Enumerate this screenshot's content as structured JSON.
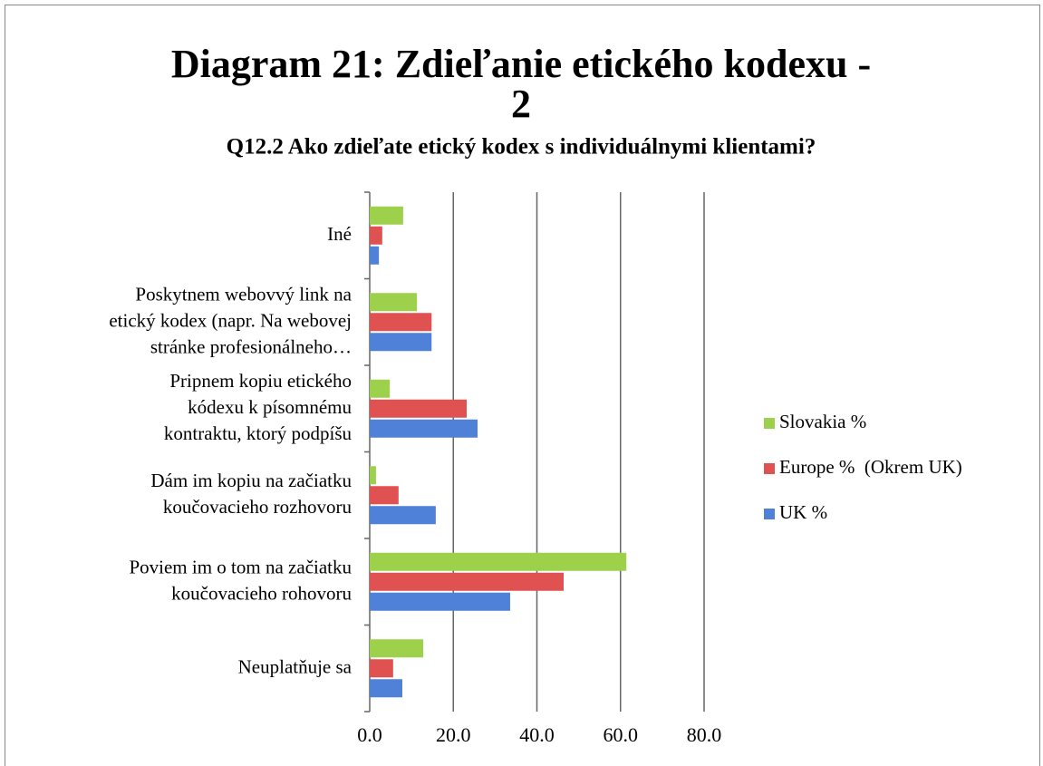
{
  "chart_data": {
    "type": "hbar",
    "title": [
      "Diagram 21: Zdieľanie etického kodexu -",
      "2"
    ],
    "subtitle": "Q12.2 Ako zdieľate etický kodex s individuálnymi klientami?",
    "categories": [
      "Iné",
      "Poskytnem webovvý link na\netický kodex (napr. Na webovej\nstránke profesionálneho…",
      "Pripnem kopiu etického\nkódexu k písomnému\nkontraktu, ktorý podpíšu",
      "Dám im kopiu na začiatku\nkoučovacieho rozhovoru ",
      "Poviem im o tom na začiatku\nkoučovacieho rohovoru",
      "Neuplatňuje sa"
    ],
    "series": [
      {
        "name": "Slovakia %",
        "color": "#9dd14b",
        "values": [
          8.0,
          11.3,
          4.8,
          1.5,
          61.4,
          12.8
        ]
      },
      {
        "name": "Europe %  (Okrem UK)",
        "color": "#e05252",
        "values": [
          3.0,
          14.8,
          23.2,
          6.9,
          46.4,
          5.6
        ]
      },
      {
        "name": "UK %",
        "color": "#4f81d9",
        "values": [
          2.2,
          14.8,
          25.8,
          15.8,
          33.6,
          7.8
        ]
      }
    ],
    "xlim": [
      0,
      80
    ],
    "xticks": [
      {
        "value": 0,
        "label": "0.0"
      },
      {
        "value": 20,
        "label": "20.0"
      },
      {
        "value": 40,
        "label": "40.0"
      },
      {
        "value": 60,
        "label": "60.0"
      },
      {
        "value": 80,
        "label": "80.0"
      }
    ],
    "grid": true,
    "legend": "right"
  }
}
